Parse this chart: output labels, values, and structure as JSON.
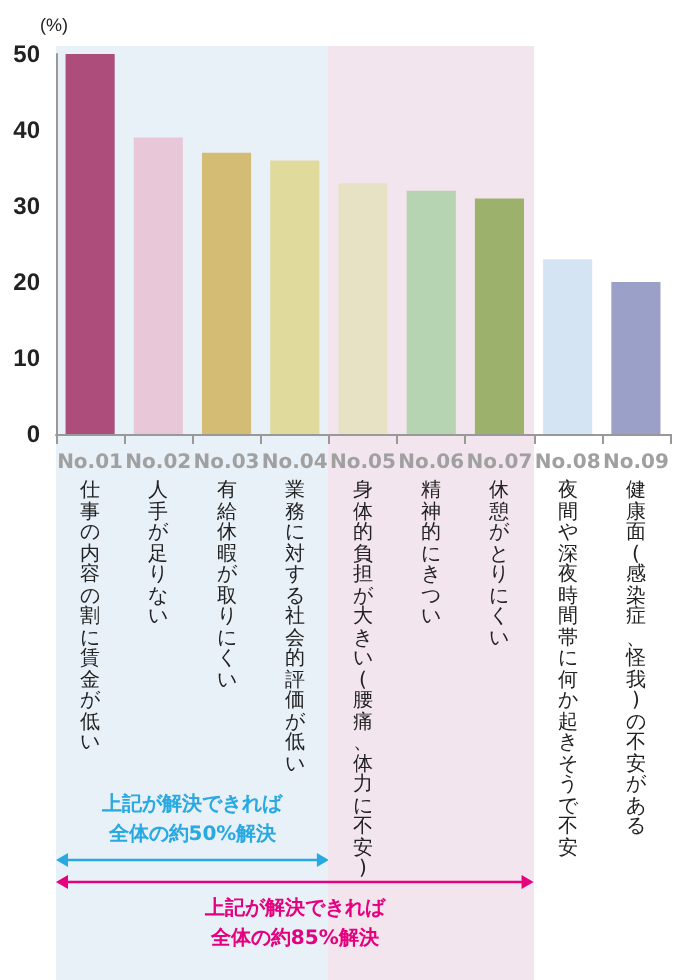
{
  "chart_data": {
    "type": "bar",
    "ylabel": "(%)",
    "categories": [
      "No.01\n仕事の内容の割に賃金が低い",
      "No.02\n人手が足りない",
      "No.03\n有給休暇が取りにくい",
      "No.04\n業務に対する社会的評価が低い",
      "No.05\n身体的負担が大きい(腰痛、体力に不安)",
      "No.06\n精神的にきつい",
      "No.07\n休憩がとりにくい",
      "No.08\n夜間や深夜時間帯に何か起きそうで不安",
      "No.09\n健康面(感染症、怪我)の不安がある"
    ],
    "values": [
      50,
      39,
      37,
      36,
      33,
      32,
      31,
      23,
      20
    ],
    "colors": [
      "#ad4d7c",
      "#e8c8d8",
      "#d4bc74",
      "#e0da9c",
      "#e8e2c4",
      "#b6d3b2",
      "#9cb26c",
      "#d4e4f2",
      "#9aa0c8"
    ],
    "ylim": [
      0,
      50
    ],
    "yticks": [
      0,
      10,
      20,
      30,
      40,
      50
    ],
    "grid": false,
    "bands": [
      {
        "axis": "x",
        "from": "No.01\n仕事の内容の割に賃金が低い",
        "to": "No.04\n業務に対する社会的評価が低い",
        "label": "上記が解決できれば全体の約50%解決",
        "color": "#e8f0f8"
      },
      {
        "axis": "x",
        "from": "No.01\n仕事の内容の割に賃金が低い",
        "to": "No.07\n休憩がとりにくい",
        "label": "上記が解決できれば全体の約85%解決",
        "color": "#f3e5ed"
      }
    ]
  }
}
